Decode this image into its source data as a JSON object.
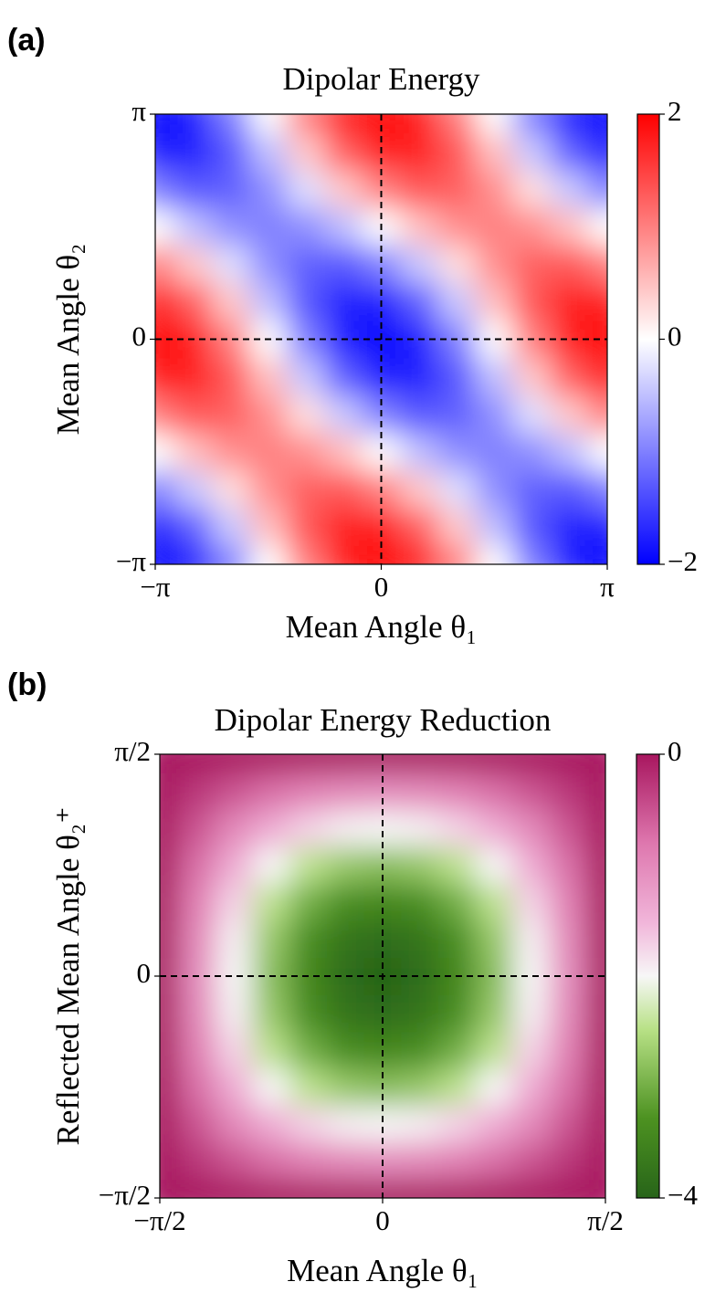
{
  "chart_data": [
    {
      "type": "heatmap",
      "panel_label": "(a)",
      "title": "Dipolar Energy",
      "xlabel": "Mean Angle θ₁",
      "ylabel": "Mean Angle θ₂",
      "colormap": "bwr",
      "x": [
        -3.1416,
        -2.618,
        -2.0944,
        -1.5708,
        -1.0472,
        -0.5236,
        0,
        0.5236,
        1.0472,
        1.5708,
        2.0944,
        2.618,
        3.1416
      ],
      "y": [
        -3.1416,
        -2.618,
        -2.0944,
        -1.5708,
        -1.0472,
        -0.5236,
        0,
        0.5236,
        1.0472,
        1.5708,
        2.0944,
        2.618,
        3.1416
      ],
      "z": [
        [
          -2,
          -1.73,
          -1,
          0,
          1,
          1.73,
          2,
          1.73,
          1,
          0,
          -1,
          -1.73,
          -2
        ],
        [
          -1.73,
          -1.25,
          -0.43,
          0.5,
          1.3,
          1.75,
          1.73,
          1.25,
          0.43,
          -0.5,
          -1.3,
          -1.75,
          -1.73
        ],
        [
          -1,
          -0.43,
          0.25,
          0.87,
          1.25,
          1.3,
          1,
          0.43,
          -0.25,
          -0.87,
          -1.25,
          -1.3,
          -1
        ],
        [
          0,
          0.5,
          0.87,
          1,
          0.87,
          0.5,
          0,
          -0.5,
          -0.87,
          -1,
          -0.87,
          -0.5,
          0
        ],
        [
          1,
          1.3,
          1.25,
          0.87,
          0.25,
          -0.43,
          -1,
          -1.3,
          -1.25,
          -0.87,
          -0.25,
          0.43,
          1
        ],
        [
          1.73,
          1.75,
          1.3,
          0.5,
          -0.43,
          -1.25,
          -1.73,
          -1.75,
          -1.3,
          -0.5,
          0.43,
          1.25,
          1.73
        ],
        [
          2,
          1.73,
          1,
          0,
          -1,
          -1.73,
          -2,
          -1.73,
          -1,
          0,
          1,
          1.73,
          2
        ],
        [
          1.73,
          1.25,
          0.43,
          -0.5,
          -1.3,
          -1.75,
          -1.73,
          -1.25,
          -0.43,
          0.5,
          1.3,
          1.75,
          1.73
        ],
        [
          1,
          0.43,
          -0.25,
          -0.87,
          -1.25,
          -1.3,
          -1,
          -0.43,
          0.25,
          0.87,
          1.25,
          1.3,
          1
        ],
        [
          0,
          -0.5,
          -0.87,
          -1,
          -0.87,
          -0.5,
          0,
          0.5,
          0.87,
          1,
          0.87,
          0.5,
          0
        ],
        [
          -1,
          -1.3,
          -1.25,
          -0.87,
          -0.25,
          0.43,
          1,
          1.3,
          1.25,
          0.87,
          0.25,
          -0.43,
          -1
        ],
        [
          -1.73,
          -1.75,
          -1.3,
          -0.5,
          0.43,
          1.25,
          1.73,
          1.75,
          1.3,
          0.5,
          -0.43,
          -1.25,
          -1.73
        ],
        [
          -2,
          -1.73,
          -1,
          0,
          1,
          1.73,
          2,
          1.73,
          1,
          0,
          -1,
          -1.73,
          -2
        ]
      ],
      "xlim": [
        -3.1416,
        3.1416
      ],
      "ylim": [
        -3.1416,
        3.1416
      ],
      "xticks": [
        {
          "value": -3.1416,
          "label": "−π"
        },
        0,
        {
          "value": 3.1416,
          "label": "π"
        }
      ],
      "yticks": [
        {
          "value": -3.1416,
          "label": "−π"
        },
        0,
        {
          "value": 3.1416,
          "label": "π"
        }
      ],
      "zlim": [
        -2,
        2
      ],
      "zticks": [
        {
          "value": -2,
          "label": "−2"
        },
        0,
        2
      ],
      "vlines": [
        0
      ],
      "hlines": [
        0
      ]
    },
    {
      "type": "heatmap",
      "panel_label": "(b)",
      "title": "Dipolar Energy Reduction",
      "xlabel": "Mean Angle θ₁",
      "ylabel": "Reflected Mean Angle θ₂⁺",
      "colormap": "PiYG_r",
      "x": [
        -1.5708,
        -1.309,
        -1.0472,
        -0.7854,
        -0.5236,
        -0.2618,
        0,
        0.2618,
        0.5236,
        0.7854,
        1.0472,
        1.309,
        1.5708
      ],
      "y": [
        -1.5708,
        -1.309,
        -1.0472,
        -0.7854,
        -0.5236,
        -0.2618,
        0,
        0.2618,
        0.5236,
        0.7854,
        1.0472,
        1.309,
        1.5708
      ],
      "z": [
        [
          0,
          0,
          0,
          0,
          0,
          0,
          0,
          0,
          0,
          0,
          0,
          0,
          0
        ],
        [
          0,
          -0.27,
          -0.52,
          -0.73,
          -0.9,
          -1,
          -1.04,
          -1,
          -0.9,
          -0.73,
          -0.52,
          -0.27,
          0
        ],
        [
          0,
          -0.52,
          -1,
          -1.41,
          -1.73,
          -1.93,
          -2,
          -1.93,
          -1.73,
          -1.41,
          -1,
          -0.52,
          0
        ],
        [
          0,
          -0.73,
          -1.41,
          -2,
          -2.45,
          -2.73,
          -2.83,
          -2.73,
          -2.45,
          -2,
          -1.41,
          -0.73,
          0
        ],
        [
          0,
          -0.9,
          -1.73,
          -2.45,
          -3,
          -3.35,
          -3.46,
          -3.35,
          -3,
          -2.45,
          -1.73,
          -0.9,
          0
        ],
        [
          0,
          -1,
          -1.93,
          -2.73,
          -3.35,
          -3.73,
          -3.86,
          -3.73,
          -3.35,
          -2.73,
          -1.93,
          -1,
          0
        ],
        [
          0,
          -1.04,
          -2,
          -2.83,
          -3.46,
          -3.86,
          -4,
          -3.86,
          -3.46,
          -2.83,
          -2,
          -1.04,
          0
        ],
        [
          0,
          -1,
          -1.93,
          -2.73,
          -3.35,
          -3.73,
          -3.86,
          -3.73,
          -3.35,
          -2.73,
          -1.93,
          -1,
          0
        ],
        [
          0,
          -0.9,
          -1.73,
          -2.45,
          -3,
          -3.35,
          -3.46,
          -3.35,
          -3,
          -2.45,
          -1.73,
          -0.9,
          0
        ],
        [
          0,
          -0.73,
          -1.41,
          -2,
          -2.45,
          -2.73,
          -2.83,
          -2.73,
          -2.45,
          -2,
          -1.41,
          -0.73,
          0
        ],
        [
          0,
          -0.52,
          -1,
          -1.41,
          -1.73,
          -1.93,
          -2,
          -1.93,
          -1.73,
          -1.41,
          -1,
          -0.52,
          0
        ],
        [
          0,
          -0.27,
          -0.52,
          -0.73,
          -0.9,
          -1,
          -1.04,
          -1,
          -0.9,
          -0.73,
          -0.52,
          -0.27,
          0
        ],
        [
          0,
          0,
          0,
          0,
          0,
          0,
          0,
          0,
          0,
          0,
          0,
          0,
          0
        ]
      ],
      "xlim": [
        -1.5708,
        1.5708
      ],
      "ylim": [
        -1.5708,
        1.5708
      ],
      "xticks": [
        {
          "value": -1.5708,
          "label": "−π/2"
        },
        0,
        {
          "value": 1.5708,
          "label": "π/2"
        }
      ],
      "yticks": [
        {
          "value": -1.5708,
          "label": "−π/2"
        },
        0,
        {
          "value": 1.5708,
          "label": "π/2"
        }
      ],
      "zlim": [
        -4,
        0
      ],
      "zticks": [
        {
          "value": -4,
          "label": "−4"
        },
        0
      ],
      "vlines": [
        0
      ],
      "hlines": [
        0
      ]
    }
  ]
}
